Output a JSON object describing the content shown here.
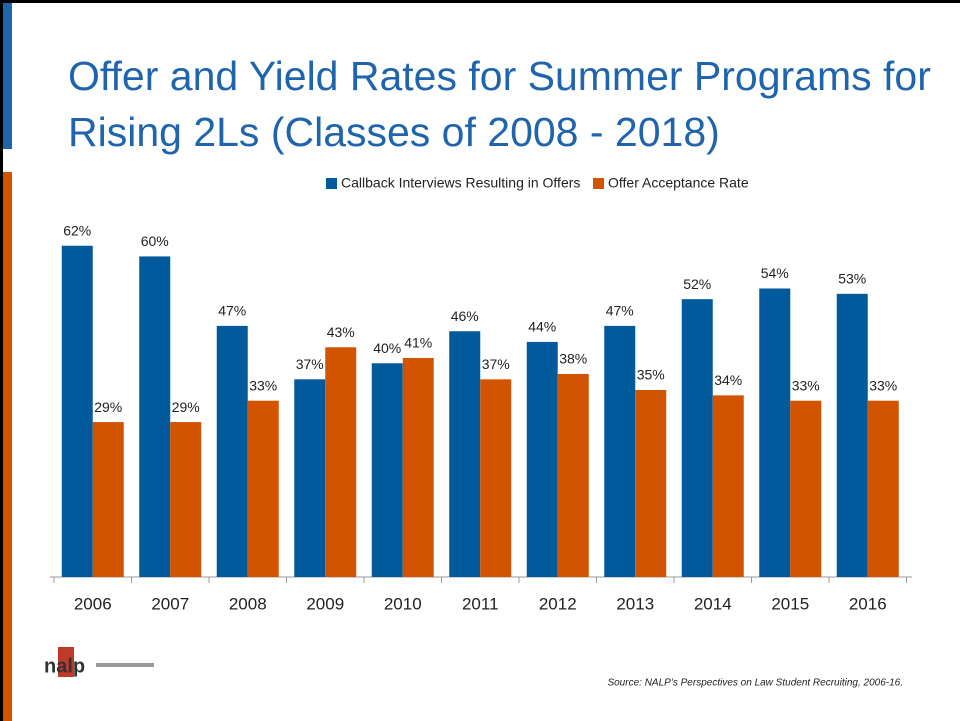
{
  "chart_data": {
    "type": "bar",
    "title": "Offer and Yield Rates for Summer Programs for Rising 2Ls (Classes of 2008 - 2018)",
    "categories": [
      "2006",
      "2007",
      "2008",
      "2009",
      "2010",
      "2011",
      "2012",
      "2013",
      "2014",
      "2015",
      "2016"
    ],
    "series": [
      {
        "name": "Callback Interviews Resulting in Offers",
        "color": "#005a9c",
        "values": [
          62,
          60,
          47,
          37,
          40,
          46,
          44,
          47,
          52,
          54,
          53
        ],
        "value_labels": [
          "62%",
          "60%",
          "47%",
          "37%",
          "40%",
          "46%",
          "44%",
          "47%",
          "52%",
          "54%",
          "53%"
        ]
      },
      {
        "name": "Offer Acceptance Rate",
        "color": "#d35400",
        "values": [
          29,
          29,
          33,
          43,
          41,
          37,
          38,
          35,
          34,
          33,
          33
        ],
        "value_labels": [
          "29%",
          "29%",
          "33%",
          "43%",
          "41%",
          "37%",
          "38%",
          "35%",
          "34%",
          "33%",
          "33%"
        ]
      }
    ],
    "ylim": [
      0,
      70
    ],
    "source": "Source: NALP’s Perspectives on Law Student Recruiting, 2006-16.",
    "logo": "nalp"
  }
}
